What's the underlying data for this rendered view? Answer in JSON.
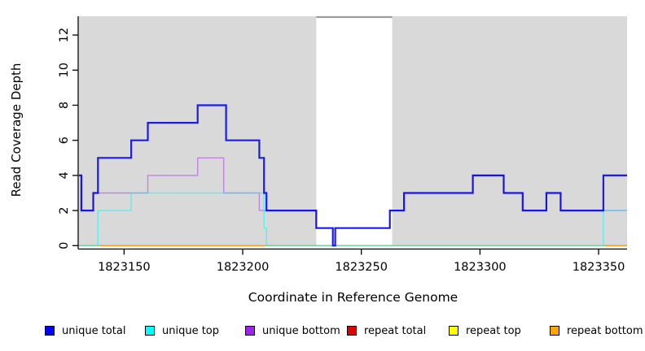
{
  "figure": {
    "background": "#ffffff",
    "plot_background": "#d9d9d9",
    "axis_color": "#000000",
    "band_top_border_color": "#9a9a9a"
  },
  "chart_data": {
    "type": "line",
    "subtype": "step-coverage",
    "title": "",
    "xlabel": "Coordinate in Reference Genome",
    "ylabel": "Read Coverage Depth",
    "xlim": [
      1823131,
      1823362
    ],
    "ylim": [
      0,
      13
    ],
    "xticks": [
      1823150,
      1823200,
      1823250,
      1823300,
      1823350
    ],
    "yticks": [
      0,
      2,
      4,
      6,
      8,
      10,
      12
    ],
    "grid": false,
    "background_band": {
      "x0": 1823231,
      "x1": 1823263,
      "color": "#ffffff"
    },
    "series": [
      {
        "name": "repeat total",
        "color": "#e00000",
        "alpha": 1,
        "width": 1.4,
        "steps": [
          [
            1823131,
            0
          ]
        ]
      },
      {
        "name": "repeat top",
        "color": "#ffff00",
        "alpha": 1,
        "width": 1.4,
        "steps": [
          [
            1823131,
            0
          ]
        ]
      },
      {
        "name": "repeat bottom",
        "color": "#ff9d26",
        "alpha": 1,
        "width": 1.6,
        "steps": [
          [
            1823131,
            0
          ]
        ]
      },
      {
        "name": "unique bottom",
        "color": "#a020f0",
        "alpha": 0.45,
        "width": 1.4,
        "steps": [
          [
            1823131,
            4
          ],
          [
            1823132,
            2
          ],
          [
            1823137,
            3
          ],
          [
            1823160,
            4
          ],
          [
            1823181,
            5
          ],
          [
            1823192,
            3
          ],
          [
            1823207,
            2
          ],
          [
            1823231,
            1
          ],
          [
            1823238,
            0
          ],
          [
            1823239,
            1
          ],
          [
            1823262,
            2
          ],
          [
            1823268,
            3
          ],
          [
            1823297,
            4
          ],
          [
            1823310,
            3
          ],
          [
            1823318,
            2
          ],
          [
            1823328,
            3
          ],
          [
            1823334,
            2
          ],
          [
            1823352,
            2
          ]
        ]
      },
      {
        "name": "unique top",
        "color": "#00ffff",
        "alpha": 0.55,
        "width": 1.5,
        "steps": [
          [
            1823131,
            0
          ],
          [
            1823139,
            2
          ],
          [
            1823153,
            3
          ],
          [
            1823209,
            1
          ],
          [
            1823210,
            0
          ],
          [
            1823352,
            2
          ]
        ]
      },
      {
        "name": "unique total",
        "color": "#0000ee",
        "alpha": 0.88,
        "width": 2.2,
        "steps": [
          [
            1823131,
            4
          ],
          [
            1823132,
            2
          ],
          [
            1823137,
            3
          ],
          [
            1823139,
            5
          ],
          [
            1823153,
            6
          ],
          [
            1823160,
            7
          ],
          [
            1823181,
            8
          ],
          [
            1823193,
            6
          ],
          [
            1823207,
            5
          ],
          [
            1823209,
            3
          ],
          [
            1823210,
            2
          ],
          [
            1823231,
            1
          ],
          [
            1823238,
            0
          ],
          [
            1823239,
            1
          ],
          [
            1823262,
            2
          ],
          [
            1823268,
            3
          ],
          [
            1823297,
            4
          ],
          [
            1823310,
            3
          ],
          [
            1823318,
            2
          ],
          [
            1823328,
            3
          ],
          [
            1823334,
            2
          ],
          [
            1823352,
            4
          ]
        ]
      }
    ],
    "legend": {
      "position": "bottom",
      "entries": [
        {
          "label": "unique total",
          "color": "#0000ff"
        },
        {
          "label": "unique top",
          "color": "#00ffff"
        },
        {
          "label": "unique bottom",
          "color": "#a020f0"
        },
        {
          "label": "repeat total",
          "color": "#e00000"
        },
        {
          "label": "repeat top",
          "color": "#ffff00"
        },
        {
          "label": "repeat bottom",
          "color": "#ffa500"
        }
      ]
    }
  }
}
